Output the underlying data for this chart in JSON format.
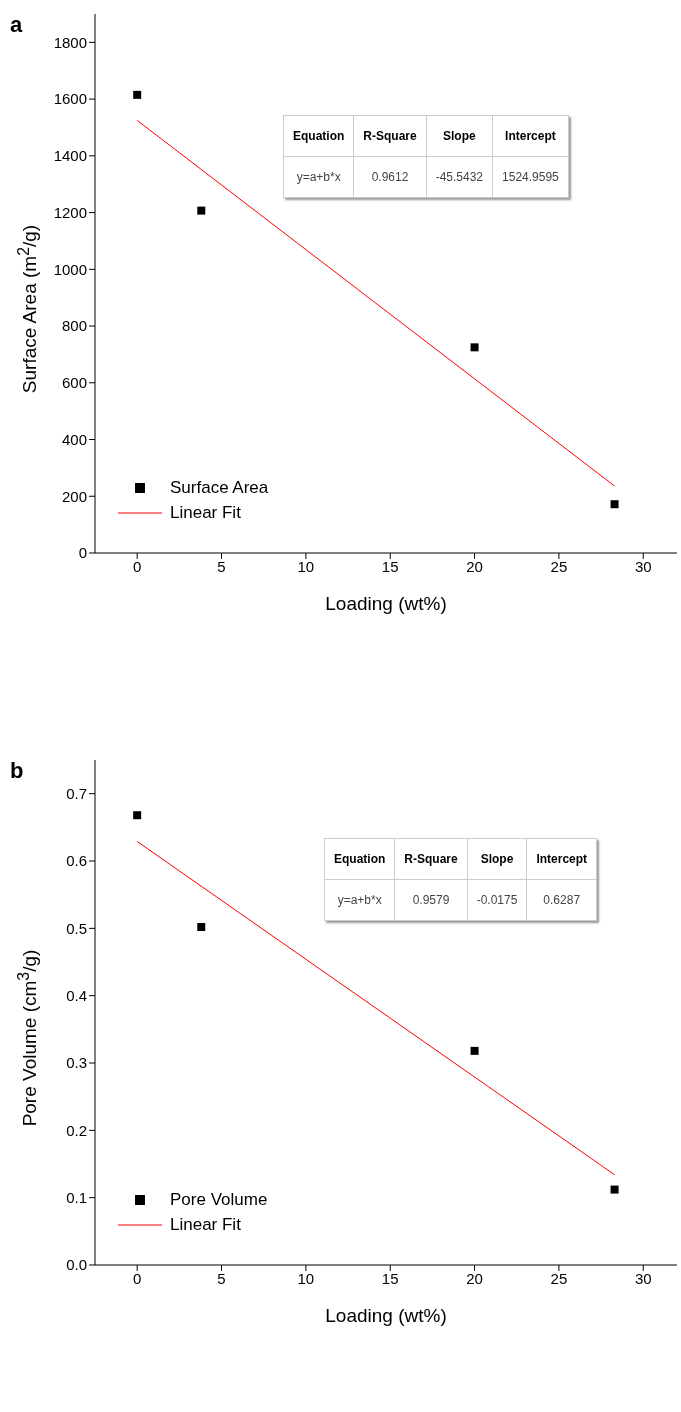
{
  "chart_data": [
    {
      "type": "scatter",
      "title": "a",
      "xlabel": "Loading (wt%)",
      "ylabel": "Surface Area (m$^{2}$/g)",
      "xlim": [
        -2.5,
        32
      ],
      "xticks": [
        0,
        5,
        10,
        15,
        20,
        25,
        30
      ],
      "ylim": [
        0,
        1900
      ],
      "yticks": [
        0,
        200,
        400,
        600,
        800,
        1000,
        1200,
        1400,
        1600,
        1800
      ],
      "grid": false,
      "legend": "bottom left",
      "series": [
        {
          "name": "Surface Area",
          "marker": "square",
          "color": "#000000",
          "x": [
            0,
            3.8,
            20,
            28.3
          ],
          "values": [
            1615,
            1207,
            725,
            172
          ]
        },
        {
          "name": "Linear Fit",
          "type": "line",
          "marker": "none",
          "color": "#ff0000",
          "x": [
            0,
            28.3
          ],
          "values": [
            1525,
            236
          ]
        }
      ],
      "annotations": [
        "Equation",
        "R-Square",
        "Slope",
        "Intercept",
        "y=a+b*x",
        "0.9612",
        "-45.5432",
        "1524.9595"
      ]
    },
    {
      "type": "scatter",
      "title": "b",
      "xlabel": "Loading (wt%)",
      "ylabel": "Pore Volume (cm$^{3}$/g)",
      "xlim": [
        -2.5,
        32
      ],
      "xticks": [
        0,
        5,
        10,
        15,
        20,
        25,
        30
      ],
      "ylim": [
        0,
        0.75
      ],
      "yticks": [
        {
          "value": 0,
          "label": "0.0"
        },
        0.1,
        0.2,
        0.3,
        0.4,
        0.5,
        0.6,
        0.7
      ],
      "grid": false,
      "legend": "bottom left",
      "series": [
        {
          "name": "Pore Volume",
          "marker": "square",
          "color": "#000000",
          "x": [
            0,
            3.8,
            20,
            28.3
          ],
          "values": [
            0.668,
            0.502,
            0.318,
            0.112
          ]
        },
        {
          "name": "Linear Fit",
          "type": "line",
          "marker": "none",
          "color": "#ff0000",
          "x": [
            0,
            28.3
          ],
          "values": [
            0.629,
            0.134
          ]
        }
      ],
      "annotations": [
        "Equation",
        "R-Square",
        "Slope",
        "Intercept",
        "y=a+b*x",
        "0.9579",
        "-0.0175",
        "0.6287"
      ]
    }
  ]
}
